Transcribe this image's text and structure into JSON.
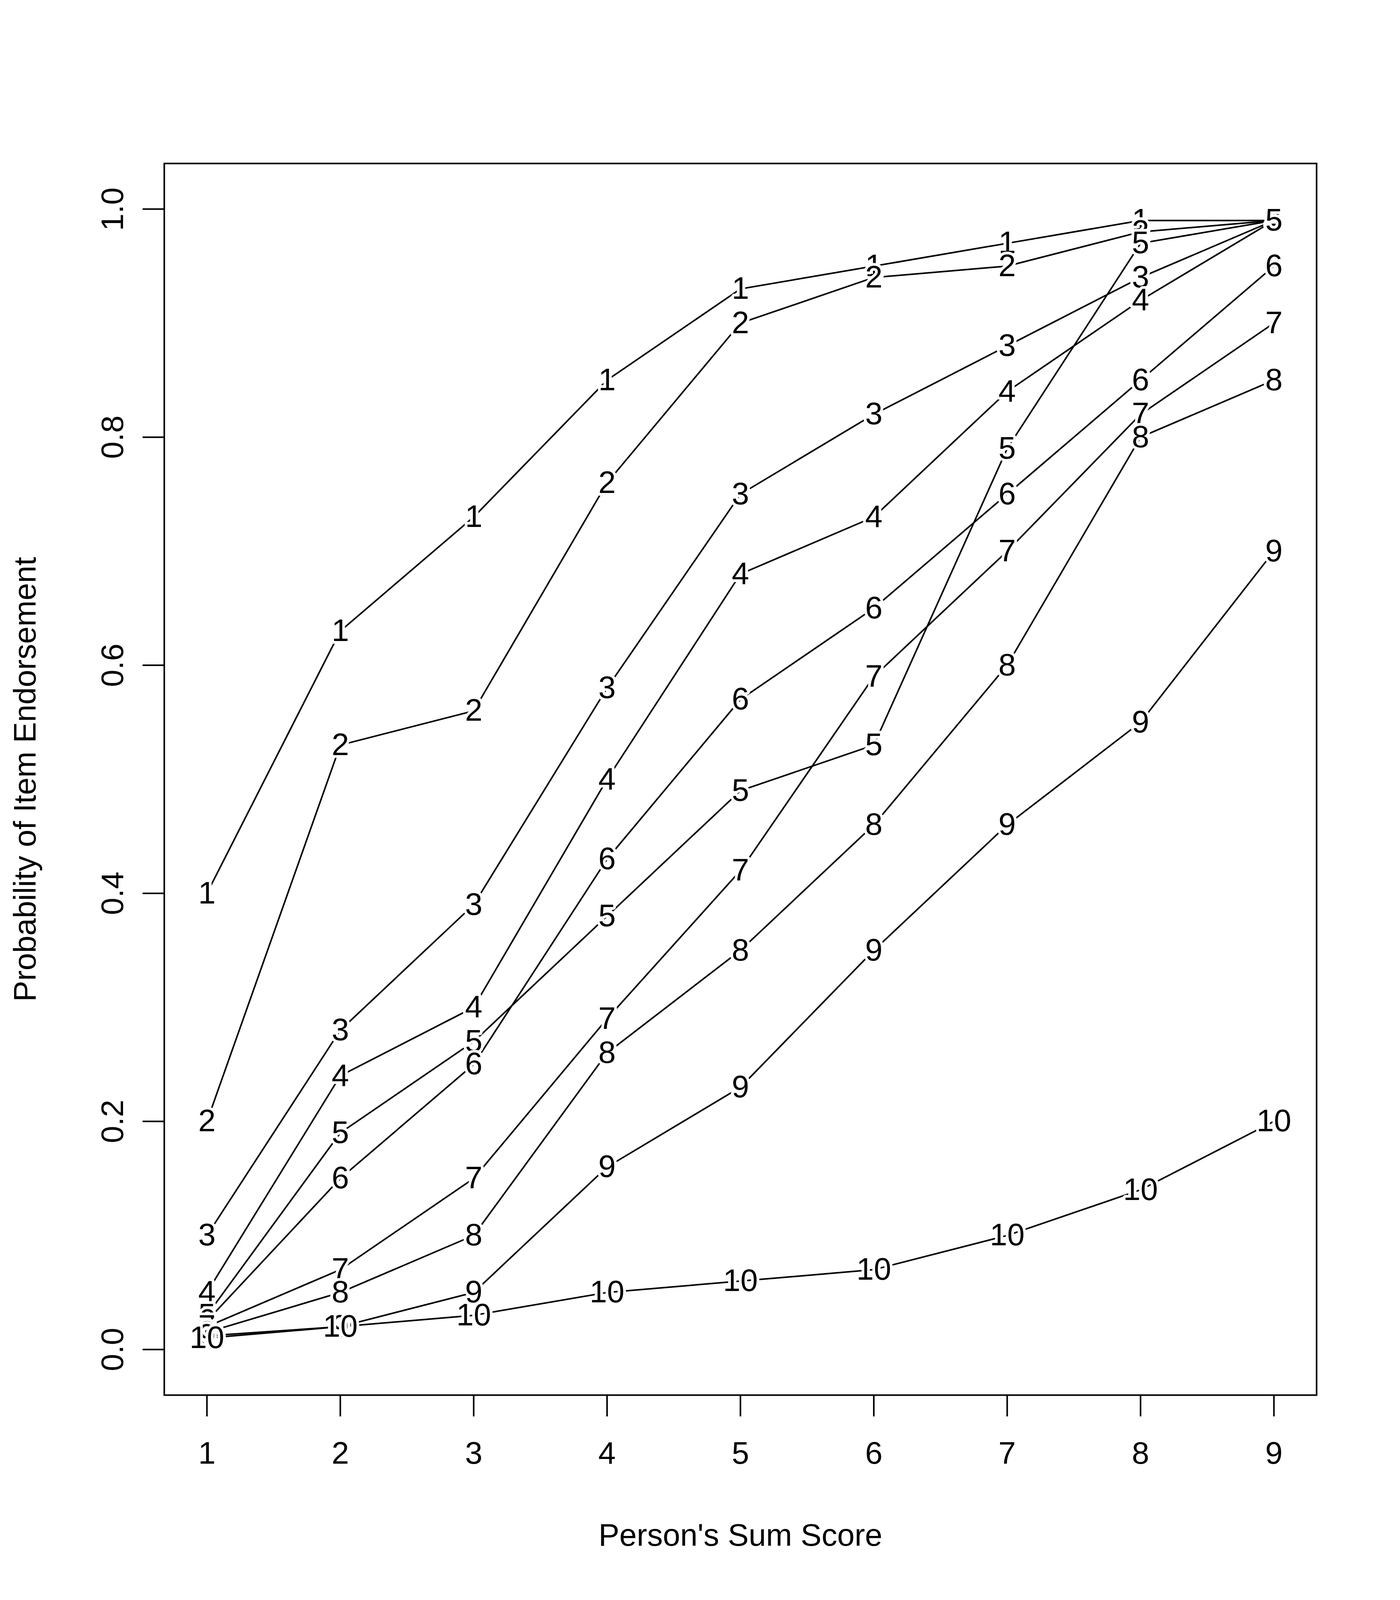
{
  "chart_data": {
    "type": "line",
    "xlabel": "Person's Sum Score",
    "ylabel": "Probability of Item Endorsement",
    "x": [
      1,
      2,
      3,
      4,
      5,
      6,
      7,
      8,
      9
    ],
    "xlim": [
      0.68,
      9.32
    ],
    "xticks": [
      1,
      2,
      3,
      4,
      5,
      6,
      7,
      8,
      9
    ],
    "ylim": [
      -0.04,
      1.04
    ],
    "yticks": [
      {
        "value": 0,
        "label": "0.0"
      },
      0.2,
      0.4,
      0.6,
      0.8,
      {
        "value": 1,
        "label": "1.0"
      }
    ],
    "grid": false,
    "marker": "number",
    "series": [
      {
        "name": "1",
        "color": "#000000",
        "values": [
          0.4,
          0.63,
          0.73,
          0.85,
          0.93,
          0.95,
          0.97,
          0.99,
          0.99
        ]
      },
      {
        "name": "2",
        "color": "#000000",
        "values": [
          0.2,
          0.53,
          0.56,
          0.76,
          0.9,
          0.94,
          0.95,
          0.98,
          0.99
        ]
      },
      {
        "name": "3",
        "color": "#000000",
        "values": [
          0.1,
          0.28,
          0.39,
          0.58,
          0.75,
          0.82,
          0.88,
          0.94,
          0.99
        ]
      },
      {
        "name": "4",
        "color": "#000000",
        "values": [
          0.05,
          0.24,
          0.3,
          0.5,
          0.68,
          0.73,
          0.84,
          0.92,
          0.99
        ]
      },
      {
        "name": "5",
        "color": "#000000",
        "values": [
          0.03,
          0.19,
          0.27,
          0.38,
          0.49,
          0.53,
          0.79,
          0.97,
          0.99
        ]
      },
      {
        "name": "6",
        "color": "#000000",
        "values": [
          0.025,
          0.15,
          0.25,
          0.43,
          0.57,
          0.65,
          0.75,
          0.85,
          0.95
        ]
      },
      {
        "name": "7",
        "color": "#000000",
        "values": [
          0.02,
          0.07,
          0.15,
          0.29,
          0.42,
          0.59,
          0.7,
          0.82,
          0.9
        ]
      },
      {
        "name": "8",
        "color": "#000000",
        "values": [
          0.015,
          0.05,
          0.1,
          0.26,
          0.35,
          0.46,
          0.6,
          0.8,
          0.85
        ]
      },
      {
        "name": "9",
        "color": "#000000",
        "values": [
          0.012,
          0.02,
          0.05,
          0.16,
          0.23,
          0.35,
          0.46,
          0.55,
          0.7
        ]
      },
      {
        "name": "10",
        "color": "#000000",
        "values": [
          0.01,
          0.02,
          0.03,
          0.05,
          0.06,
          0.07,
          0.1,
          0.14,
          0.2
        ]
      }
    ]
  }
}
